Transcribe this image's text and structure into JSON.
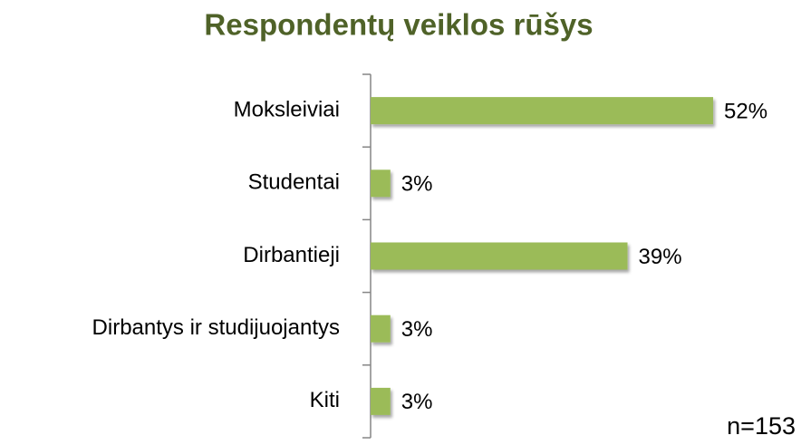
{
  "chart_data": {
    "type": "bar",
    "orientation": "horizontal",
    "title": "Respondentų veiklos rūšys",
    "categories": [
      "Moksleiviai",
      "Studentai",
      "Dirbantieji",
      "Dirbantys ir studijuojantys",
      "Kiti"
    ],
    "values": [
      52,
      3,
      39,
      3,
      3
    ],
    "value_labels": [
      "52%",
      "3%",
      "39%",
      "3%",
      "3%"
    ],
    "color": "#9bbb59",
    "annotation": "n=153"
  }
}
